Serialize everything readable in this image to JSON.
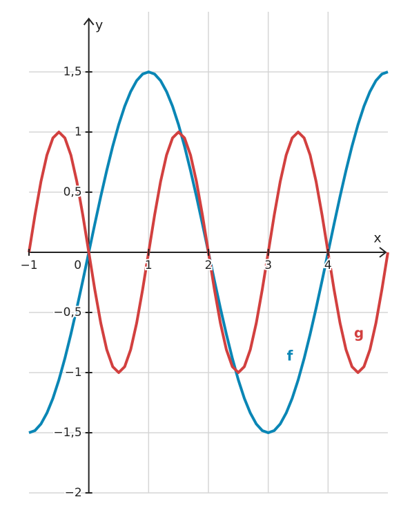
{
  "chart_data": {
    "type": "line",
    "x_label": "x",
    "y_label": "y",
    "x": [
      -1,
      -0.9,
      -0.8,
      -0.7,
      -0.6,
      -0.5,
      -0.4,
      -0.3,
      -0.2,
      -0.1,
      0,
      0.1,
      0.2,
      0.3,
      0.4,
      0.5,
      0.6,
      0.7,
      0.8,
      0.9,
      1,
      1.1,
      1.2,
      1.3,
      1.4,
      1.5,
      1.6,
      1.7,
      1.8,
      1.9,
      2,
      2.1,
      2.2,
      2.3,
      2.4,
      2.5,
      2.6,
      2.7,
      2.8,
      2.9,
      3,
      3.1,
      3.2,
      3.3,
      3.4,
      3.5,
      3.6,
      3.7,
      3.8,
      3.9,
      4,
      4.1,
      4.2,
      4.3,
      4.4,
      4.5,
      4.6,
      4.7,
      4.8,
      4.9,
      5
    ],
    "series": [
      {
        "name": "f",
        "color": "#0a86b5",
        "values": [
          -1.5,
          -1.482,
          -1.427,
          -1.336,
          -1.214,
          -1.061,
          -0.882,
          -0.681,
          -0.464,
          -0.235,
          0,
          0.235,
          0.464,
          0.681,
          0.882,
          1.061,
          1.214,
          1.336,
          1.427,
          1.482,
          1.5,
          1.482,
          1.427,
          1.336,
          1.214,
          1.061,
          0.882,
          0.681,
          0.464,
          0.235,
          0,
          -0.235,
          -0.464,
          -0.681,
          -0.882,
          -1.061,
          -1.214,
          -1.336,
          -1.427,
          -1.482,
          -1.5,
          -1.482,
          -1.427,
          -1.336,
          -1.214,
          -1.061,
          -0.882,
          -0.681,
          -0.464,
          -0.235,
          0,
          0.235,
          0.464,
          0.681,
          0.882,
          1.061,
          1.214,
          1.336,
          1.427,
          1.482,
          1.5
        ]
      },
      {
        "name": "g",
        "color": "#d2403f",
        "values": [
          0,
          0.309,
          0.588,
          0.809,
          0.951,
          1,
          0.951,
          0.809,
          0.588,
          0.309,
          0,
          -0.309,
          -0.588,
          -0.809,
          -0.951,
          -1,
          -0.951,
          -0.809,
          -0.588,
          -0.309,
          0,
          0.309,
          0.588,
          0.809,
          0.951,
          1,
          0.951,
          0.809,
          0.588,
          0.309,
          0,
          -0.309,
          -0.588,
          -0.809,
          -0.951,
          -1,
          -0.951,
          -0.809,
          -0.588,
          -0.309,
          0,
          0.309,
          0.588,
          0.809,
          0.951,
          1,
          0.951,
          0.809,
          0.588,
          0.309,
          0,
          -0.309,
          -0.588,
          -0.809,
          -0.951,
          -1,
          -0.951,
          -0.809,
          -0.588,
          -0.309,
          0
        ]
      }
    ],
    "xlim": [
      -1,
      5
    ],
    "ylim": [
      -2,
      2
    ],
    "xticks": [
      {
        "value": -1,
        "label": "−1"
      },
      0,
      1,
      2,
      3,
      4
    ],
    "yticks": [
      {
        "value": -2,
        "label": "−2"
      },
      {
        "value": -1.5,
        "label": "−1,5"
      },
      {
        "value": -1,
        "label": "−1"
      },
      {
        "value": -0.5,
        "label": "−0,5"
      },
      {
        "value": 0.5,
        "label": "0,5"
      },
      1,
      {
        "value": 1.5,
        "label": "1,5"
      }
    ],
    "grid": true
  }
}
